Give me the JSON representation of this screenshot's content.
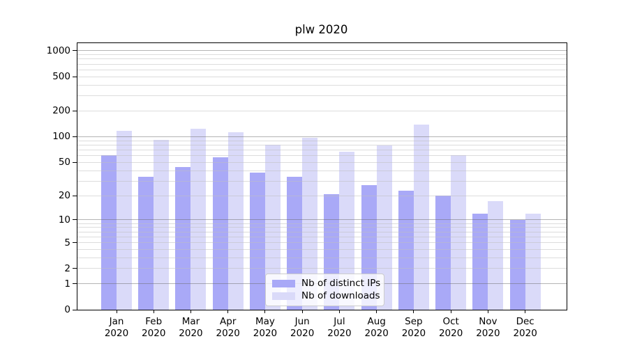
{
  "chart_data": {
    "type": "bar",
    "title": "plw 2020",
    "categories": [
      "Jan",
      "Feb",
      "Mar",
      "Apr",
      "May",
      "Jun",
      "Jul",
      "Aug",
      "Sep",
      "Oct",
      "Nov",
      "Dec"
    ],
    "category_year": "2020",
    "series": [
      {
        "name": "Nb of distinct IPs",
        "color": "#a9a9f7",
        "values": [
          61,
          34,
          44,
          57,
          38,
          34,
          21,
          27,
          23,
          20,
          12,
          10
        ]
      },
      {
        "name": "Nb of downloads",
        "color": "#dadaf9",
        "values": [
          117,
          92,
          125,
          113,
          80,
          98,
          67,
          79,
          140,
          61,
          17,
          12
        ]
      }
    ],
    "yticks": [
      0,
      1,
      2,
      5,
      10,
      20,
      50,
      100,
      200,
      500,
      1000
    ],
    "scale": "log1p",
    "ylim": [
      0,
      1226
    ],
    "xlabel": "",
    "ylabel": "",
    "grid": "both",
    "legend": {
      "position": "lower-center-inside",
      "entries": [
        "Nb of distinct IPs",
        "Nb of downloads"
      ]
    }
  },
  "colors": {
    "bar_ips": "#a9a9f7",
    "bar_downloads": "#dadaf9",
    "major_grid": "#6a6a6a",
    "minor_grid": "#c0c0c0",
    "spine": "#000000",
    "legend_border": "#cccccc"
  }
}
